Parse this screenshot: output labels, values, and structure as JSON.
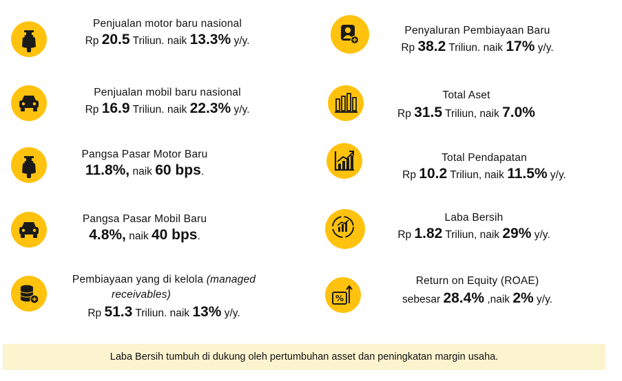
{
  "left": [
    {
      "label": "Penjualan motor baru nasional",
      "pre": "Rp",
      "v1": "20.5",
      "mid": "Triliun. naik",
      "v2": "13.3%",
      "post": "y/y."
    },
    {
      "label": "Penjualan mobil baru nasional",
      "pre": "Rp",
      "v1": "16.9",
      "mid": "Triliun. naik",
      "v2": "22.3%",
      "post": "y/y."
    },
    {
      "label": "Pangsa Pasar Motor Baru",
      "v1": "11.8%,",
      "mid": "naik",
      "v2": "60 bps",
      "post": "."
    },
    {
      "label": "Pangsa Pasar Mobil Baru",
      "v1": "4.8%,",
      "mid": "naik",
      "v2": "40 bps",
      "post": "."
    },
    {
      "label": "Pembiayaan yang di kelola",
      "label_italic": "(managed",
      "label2": "receivables)",
      "pre": "Rp",
      "v1": "51.3",
      "mid": "Triliun. naik",
      "v2": "13%",
      "post": "y/y."
    }
  ],
  "right": [
    {
      "label": "Penyaluran Pembiayaan Baru",
      "pre": "Rp",
      "v1": "38.2",
      "mid": "Triliun. naik",
      "v2": "17%",
      "post": "y/y."
    },
    {
      "label": "Total Aset",
      "pre": "Rp",
      "v1": "31.5",
      "mid": "Triliun, naik",
      "v2": "7.0%",
      "post": ""
    },
    {
      "label": "Total Pendapatan",
      "pre": "Rp",
      "v1": "10.2",
      "mid": "Triliun, naik",
      "v2": "11.5%",
      "post": "y/y."
    },
    {
      "label": "Laba Bersih",
      "pre": "Rp",
      "v1": "1.82",
      "mid": "Triliun, naik",
      "v2": "29%",
      "post": "y/y."
    },
    {
      "label": "Return on Equity (ROAE)",
      "pre": "sebesar",
      "v1": "28.4%",
      "mid": ",naik",
      "v2": "2%",
      "post": "y/y."
    }
  ],
  "footer": "Laba Bersih tumbuh di dukung oleh pertumbuhan asset dan peningkatan margin usaha.",
  "colors": {
    "accent": "#FFC20E",
    "footer_bg": "#FCF3CF"
  },
  "icons": [
    "scooter-icon",
    "car-icon",
    "scooter-icon",
    "car-icon",
    "coins-icon",
    "person-plus-icon",
    "bar-chart-icon",
    "growth-chart-icon",
    "profit-cycle-icon",
    "percent-growth-icon"
  ]
}
